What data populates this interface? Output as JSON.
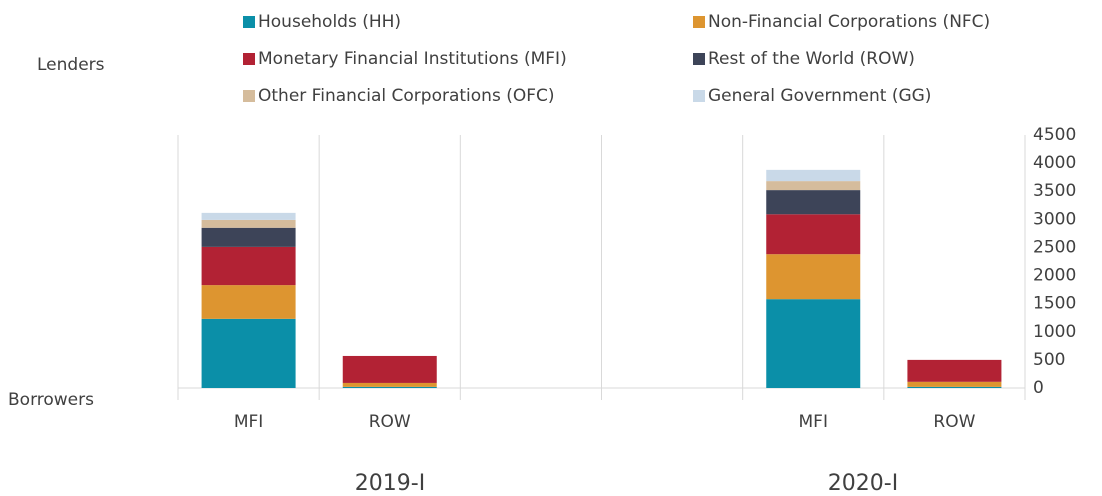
{
  "chart_data": {
    "type": "stacked_bar",
    "categories": [
      "MFI",
      "ROW",
      null,
      null,
      "MFI",
      "ROW"
    ],
    "group_labels": [
      "2019-I",
      "2020-I"
    ],
    "row_labels": [
      "Lenders",
      "Borrowers"
    ],
    "series": [
      {
        "name": "Households (HH)",
        "color": "#0b8fa8",
        "values": [
          1230,
          20,
          null,
          null,
          1580,
          20
        ]
      },
      {
        "name": "Non-Financial Corporations (NFC)",
        "color": "#dd9530",
        "values": [
          600,
          70,
          null,
          null,
          800,
          90
        ]
      },
      {
        "name": "Monetary Financial Institutions (MFI)",
        "color": "#b22234",
        "values": [
          680,
          480,
          null,
          null,
          710,
          390
        ]
      },
      {
        "name": "Rest of the World (ROW)",
        "color": "#3d4458",
        "values": [
          340,
          0,
          null,
          null,
          430,
          0
        ]
      },
      {
        "name": "Other Financial Corporations (OFC)",
        "color": "#d5bc9c",
        "values": [
          140,
          0,
          null,
          null,
          160,
          0
        ]
      },
      {
        "name": "General Government (GG)",
        "color": "#c9d9e8",
        "values": [
          125,
          0,
          null,
          null,
          200,
          0
        ]
      }
    ],
    "ylim": [
      0,
      4500
    ],
    "yticks": [
      0,
      500,
      1000,
      1500,
      2000,
      2500,
      3000,
      3500,
      4000,
      4500
    ]
  }
}
